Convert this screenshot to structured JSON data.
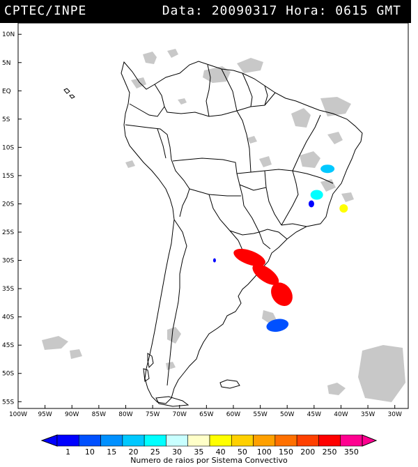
{
  "header": {
    "source": "CPTEC/INPE",
    "date_label": "Data:",
    "date": "20090317",
    "time_label": "Hora:",
    "time": "0615 GMT"
  },
  "lat_labels": [
    "10N",
    "5N",
    "EQ",
    "5S",
    "10S",
    "15S",
    "20S",
    "25S",
    "30S",
    "35S",
    "40S",
    "45S",
    "50S",
    "55S"
  ],
  "lon_labels": [
    "100W",
    "95W",
    "90W",
    "85W",
    "80W",
    "75W",
    "70W",
    "65W",
    "60W",
    "55W",
    "50W",
    "45W",
    "40W",
    "35W",
    "30W"
  ],
  "legend": {
    "title": "Numero de raios por Sistema Convectivo",
    "values": [
      "1",
      "10",
      "15",
      "20",
      "25",
      "30",
      "35",
      "40",
      "50",
      "100",
      "150",
      "200",
      "250",
      "350"
    ],
    "colors": [
      "#0000ff",
      "#0050ff",
      "#0090ff",
      "#00c8ff",
      "#00ffff",
      "#c8ffff",
      "#ffffc8",
      "#ffff00",
      "#ffd000",
      "#ffa000",
      "#ff7000",
      "#ff4000",
      "#ff0000",
      "#ff0090"
    ]
  },
  "lightning_clusters": [
    {
      "lon": -42.5,
      "lat": -13.8,
      "level": "20"
    },
    {
      "lon": -44.5,
      "lat": -18.4,
      "level": "25"
    },
    {
      "lon": -45.5,
      "lat": -20.0,
      "level": "1"
    },
    {
      "lon": -39.5,
      "lat": -20.8,
      "level": "40"
    },
    {
      "lon": -57.0,
      "lat": -29.5,
      "level": "250"
    },
    {
      "lon": -54.0,
      "lat": -32.5,
      "level": "250"
    },
    {
      "lon": -51.0,
      "lat": -36.0,
      "level": "250"
    },
    {
      "lon": -51.8,
      "lat": -41.5,
      "level": "10"
    },
    {
      "lon": -63.5,
      "lat": -30.0,
      "level": "1"
    }
  ]
}
